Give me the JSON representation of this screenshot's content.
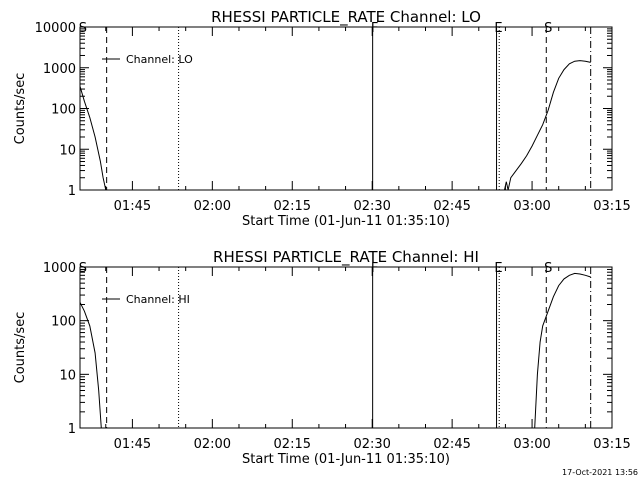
{
  "footer": {
    "timestamp": "17-Oct-2021 13:56"
  },
  "chart_data": [
    {
      "type": "line",
      "title": "RHESSI PARTICLE_RATE Channel: LO",
      "xlabel": "Start Time (01-Jun-11 01:35:10)",
      "ylabel": "Counts/sec",
      "yscale": "log",
      "ylim": [
        1,
        10000
      ],
      "xlim": [
        "01:35:10",
        "03:15:00"
      ],
      "x_ticks": [
        "01:45",
        "02:00",
        "02:15",
        "02:30",
        "02:45",
        "03:00",
        "03:15"
      ],
      "y_ticks": [
        "1",
        "10",
        "100",
        "1000",
        "10000"
      ],
      "legend": {
        "label": "Channel: LO",
        "placement": "top-left"
      },
      "markers": [
        {
          "label": "S",
          "time": "01:35:20",
          "style": "none"
        },
        {
          "label": "",
          "time": "01:40:10",
          "style": "dashed"
        },
        {
          "label": "",
          "time": "01:53:40",
          "style": "dotted"
        },
        {
          "label": "F",
          "time": "02:30:05",
          "style": "solid"
        },
        {
          "label": "E",
          "time": "02:53:20",
          "style": "solid"
        },
        {
          "label": "",
          "time": "02:53:50",
          "style": "dotted"
        },
        {
          "label": "S",
          "time": "03:02:40",
          "style": "dashed"
        },
        {
          "label": "",
          "time": "03:11:00",
          "style": "dash-dot"
        }
      ],
      "series": [
        {
          "segments": [
            [
              [
                "01:35:10",
                350
              ],
              [
                "01:36:00",
                150
              ],
              [
                "01:37:00",
                60
              ],
              [
                "01:38:00",
                20
              ],
              [
                "01:39:00",
                5
              ],
              [
                "01:39:30",
                2
              ],
              [
                "01:40:00",
                1
              ]
            ],
            [
              [
                "02:54:50",
                1
              ],
              [
                "02:55:10",
                1.6
              ],
              [
                "02:55:30",
                1
              ]
            ],
            [
              [
                "02:55:30",
                1
              ],
              [
                "02:56:00",
                2
              ],
              [
                "02:57:00",
                3
              ],
              [
                "02:58:00",
                4.5
              ],
              [
                "02:59:00",
                7
              ],
              [
                "03:00:00",
                12
              ],
              [
                "03:01:00",
                22
              ],
              [
                "03:02:00",
                40
              ],
              [
                "03:03:00",
                90
              ],
              [
                "03:04:00",
                250
              ],
              [
                "03:05:00",
                550
              ],
              [
                "03:06:00",
                900
              ],
              [
                "03:07:00",
                1250
              ],
              [
                "03:08:00",
                1450
              ],
              [
                "03:09:00",
                1500
              ],
              [
                "03:10:00",
                1450
              ],
              [
                "03:11:00",
                1350
              ]
            ]
          ]
        }
      ]
    },
    {
      "type": "line",
      "title": "RHESSI PARTICLE_RATE Channel: HI",
      "xlabel": "Start Time (01-Jun-11 01:35:10)",
      "ylabel": "Counts/sec",
      "yscale": "log",
      "ylim": [
        1,
        1000
      ],
      "xlim": [
        "01:35:10",
        "03:15:00"
      ],
      "x_ticks": [
        "01:45",
        "02:00",
        "02:15",
        "02:30",
        "02:45",
        "03:00",
        "03:15"
      ],
      "y_ticks": [
        "1",
        "10",
        "100",
        "1000"
      ],
      "legend": {
        "label": "Channel: HI",
        "placement": "top-left"
      },
      "markers": [
        {
          "label": "S",
          "time": "01:35:20",
          "style": "none"
        },
        {
          "label": "",
          "time": "01:40:10",
          "style": "dashed"
        },
        {
          "label": "",
          "time": "01:53:40",
          "style": "dotted"
        },
        {
          "label": "F",
          "time": "02:30:05",
          "style": "solid"
        },
        {
          "label": "E",
          "time": "02:53:20",
          "style": "solid"
        },
        {
          "label": "",
          "time": "02:53:50",
          "style": "dotted"
        },
        {
          "label": "S",
          "time": "03:02:40",
          "style": "dashed"
        },
        {
          "label": "",
          "time": "03:11:00",
          "style": "dash-dot"
        }
      ],
      "series": [
        {
          "segments": [
            [
              [
                "01:35:10",
                220
              ],
              [
                "01:36:00",
                150
              ],
              [
                "01:37:00",
                80
              ],
              [
                "01:38:00",
                25
              ],
              [
                "01:38:40",
                5
              ],
              [
                "01:39:10",
                1
              ]
            ],
            [
              [
                "03:00:30",
                1
              ],
              [
                "03:01:00",
                10
              ],
              [
                "03:01:30",
                40
              ],
              [
                "03:02:00",
                80
              ],
              [
                "03:03:00",
                150
              ],
              [
                "03:04:00",
                280
              ],
              [
                "03:05:00",
                450
              ],
              [
                "03:06:00",
                600
              ],
              [
                "03:07:00",
                700
              ],
              [
                "03:08:00",
                760
              ],
              [
                "03:09:00",
                740
              ],
              [
                "03:10:00",
                700
              ],
              [
                "03:11:00",
                650
              ]
            ]
          ]
        }
      ]
    }
  ]
}
